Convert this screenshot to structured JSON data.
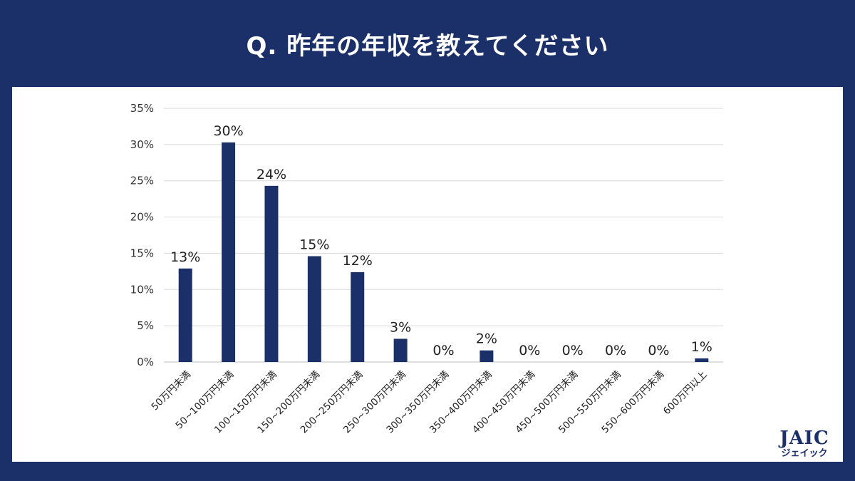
{
  "header": {
    "title": "Q.  昨年の年収を教えてください"
  },
  "logo": {
    "main": "JAIC",
    "sub": "ジェイック"
  },
  "colors": {
    "bar": "#1b3068",
    "background": "#1b3068",
    "grid": "#d9d9d9"
  },
  "chart_data": {
    "type": "bar",
    "title": "",
    "xlabel": "",
    "ylabel": "",
    "ylim": [
      0,
      35
    ],
    "yticks": [
      "35%",
      "30%",
      "25%",
      "20%",
      "15%",
      "10%",
      "5%",
      "0%"
    ],
    "grid": true,
    "categories": [
      "50万円未満",
      "50~100万円未満",
      "100~150万円未満",
      "150~200万円未満",
      "200~250万円未満",
      "250~300万円未満",
      "300~350万円未満",
      "350~400万円未満",
      "400~450万円未満",
      "450~500万円未満",
      "500~550万円未満",
      "550~600万円未満",
      "600万円以上"
    ],
    "values": [
      12.9,
      30.3,
      24.3,
      14.6,
      12.4,
      3.2,
      0,
      1.6,
      0,
      0,
      0,
      0,
      0.5
    ],
    "data_labels": [
      "13%",
      "30%",
      "24%",
      "15%",
      "12%",
      "3%",
      "0%",
      "2%",
      "0%",
      "0%",
      "0%",
      "0%",
      "1%"
    ]
  }
}
